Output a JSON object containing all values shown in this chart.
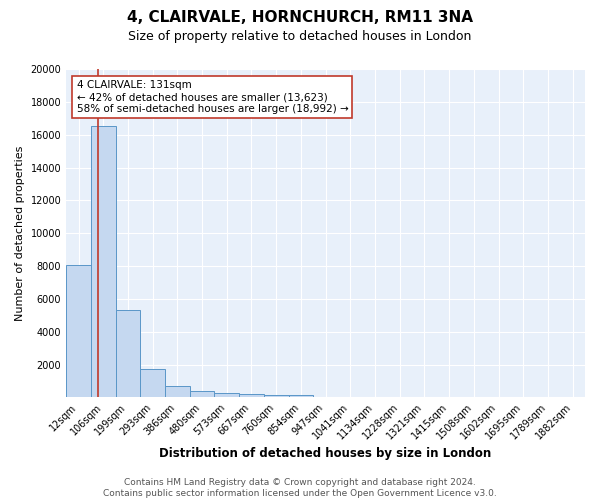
{
  "title": "4, CLAIRVALE, HORNCHURCH, RM11 3NA",
  "subtitle": "Size of property relative to detached houses in London",
  "xlabel": "Distribution of detached houses by size in London",
  "ylabel": "Number of detached properties",
  "categories": [
    "12sqm",
    "106sqm",
    "199sqm",
    "293sqm",
    "386sqm",
    "480sqm",
    "573sqm",
    "667sqm",
    "760sqm",
    "854sqm",
    "947sqm",
    "1041sqm",
    "1134sqm",
    "1228sqm",
    "1321sqm",
    "1415sqm",
    "1508sqm",
    "1602sqm",
    "1695sqm",
    "1789sqm",
    "1882sqm"
  ],
  "values": [
    8050,
    16500,
    5350,
    1750,
    700,
    380,
    250,
    190,
    150,
    120,
    0,
    0,
    0,
    0,
    0,
    0,
    0,
    0,
    0,
    0,
    0
  ],
  "bar_color": "#c5d8f0",
  "bar_edge_color": "#5a96c8",
  "background_color": "#e8f0fa",
  "grid_color": "#ffffff",
  "property_line_color": "#c0392b",
  "annotation_text": "4 CLAIRVALE: 131sqm\n← 42% of detached houses are smaller (13,623)\n58% of semi-detached houses are larger (18,992) →",
  "annotation_box_color": "#ffffff",
  "annotation_box_edge_color": "#c0392b",
  "ylim": [
    0,
    20000
  ],
  "yticks": [
    0,
    2000,
    4000,
    6000,
    8000,
    10000,
    12000,
    14000,
    16000,
    18000,
    20000
  ],
  "footer_line1": "Contains HM Land Registry data © Crown copyright and database right 2024.",
  "footer_line2": "Contains public sector information licensed under the Open Government Licence v3.0.",
  "title_fontsize": 11,
  "subtitle_fontsize": 9,
  "xlabel_fontsize": 8.5,
  "ylabel_fontsize": 8,
  "tick_fontsize": 7,
  "annotation_fontsize": 7.5,
  "footer_fontsize": 6.5
}
